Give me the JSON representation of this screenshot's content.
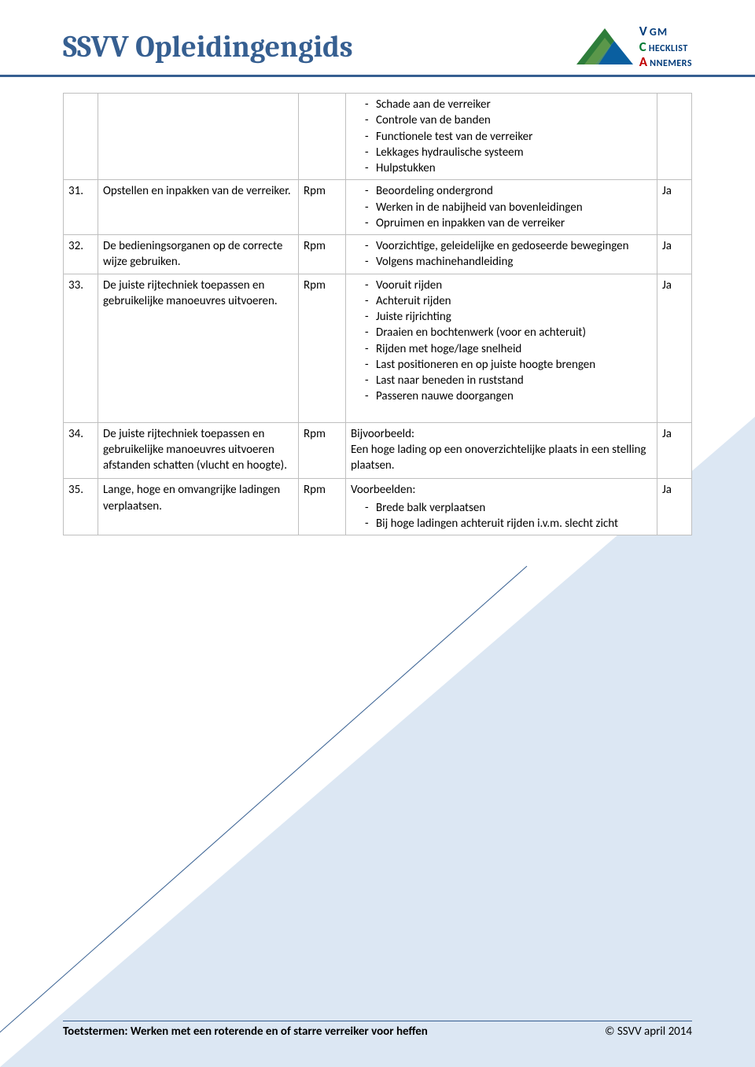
{
  "colors": {
    "accent": "#365f91",
    "border": "#bfbfbf",
    "bg_light": "#dce7f3",
    "logo_blue": "#003b7a",
    "logo_green": "#007a33",
    "logo_red": "#c00000"
  },
  "header": {
    "title": "SSVV Opleidingengids",
    "logo_line1_a": "V",
    "logo_line1_b": "GM",
    "logo_line2_a": "C",
    "logo_line2_b": "HECKLIST",
    "logo_line3_a": "A",
    "logo_line3_b": "NNEMERS"
  },
  "table": {
    "rows": [
      {
        "num": "",
        "desc": "",
        "code": "",
        "detail_pre": "",
        "detail_items": [
          "Schade aan de verreiker",
          "Controle van de banden",
          "Functionele test van de verreiker",
          "Lekkages hydraulische systeem",
          "Hulpstukken"
        ],
        "ja": ""
      },
      {
        "num": "31.",
        "desc": "Opstellen en inpakken van de verreiker.",
        "code": "Rpm",
        "detail_pre": "",
        "detail_items": [
          "Beoordeling ondergrond",
          "Werken in de nabijheid van bovenleidingen",
          "Opruimen en inpakken van de verreiker"
        ],
        "ja": "Ja"
      },
      {
        "num": "32.",
        "desc": "De bedieningsorganen op de correcte wijze gebruiken.",
        "code": "Rpm",
        "detail_pre": "",
        "detail_items": [
          "Voorzichtige, geleidelijke en gedoseerde bewegingen",
          "Volgens machinehandleiding"
        ],
        "ja": "Ja"
      },
      {
        "num": "33.",
        "desc": "De juiste rijtechniek toepassen en gebruikelijke manoeuvres uitvoeren.",
        "code": "Rpm",
        "detail_pre": "",
        "detail_items": [
          "Vooruit rijden",
          "Achteruit rijden",
          "Juiste rijrichting",
          "Draaien en bochtenwerk (voor en achteruit)",
          "Rijden met hoge/lage snelheid",
          "Last positioneren en op juiste hoogte brengen",
          "Last naar beneden in ruststand",
          "Passeren nauwe doorgangen"
        ],
        "ja": "Ja"
      },
      {
        "num": "34.",
        "desc": "De juiste rijtechniek toepassen en gebruikelijke manoeuvres uitvoeren afstanden schatten (vlucht en hoogte).",
        "code": "Rpm",
        "detail_pre": "Bijvoorbeeld:\nEen hoge lading op een onoverzichtelijke plaats in een stelling plaatsen.",
        "detail_items": [],
        "ja": "Ja"
      },
      {
        "num": "35.",
        "desc": "Lange, hoge en omvangrijke ladingen verplaatsen.",
        "code": "Rpm",
        "detail_pre": "Voorbeelden:",
        "detail_items": [
          "Brede balk verplaatsen",
          "Bij hoge ladingen achteruit rijden i.v.m. slecht zicht"
        ],
        "ja": "Ja"
      }
    ]
  },
  "footer": {
    "left": "Toetstermen: Werken met een roterende en of starre verreiker voor heffen",
    "right": "© SSVV april 2014"
  }
}
